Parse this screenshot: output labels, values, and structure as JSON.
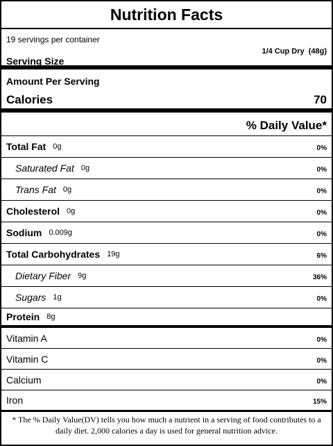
{
  "title": "Nutrition Facts",
  "servings_per_container": "19 servings per container",
  "serving_size": {
    "label": "Serving Size",
    "value": "1/4 Cup Dry  (48g)"
  },
  "amount_per_serving": "Amount Per Serving",
  "calories": {
    "label": "Calories",
    "value": "70"
  },
  "daily_value_header": "% Daily Value*",
  "nutrients": [
    {
      "name": "Total Fat",
      "amount": "0g",
      "dv": "0%"
    },
    {
      "name": "Saturated Fat",
      "amount": "0g",
      "dv": "0%"
    },
    {
      "name": "Trans Fat",
      "amount": "0g",
      "dv": "0%"
    },
    {
      "name": "Cholesterol",
      "amount": "0g",
      "dv": "0%"
    },
    {
      "name": "Sodium",
      "amount": "0.009g",
      "dv": "0%"
    },
    {
      "name": "Total Carbohydrates",
      "amount": "19g",
      "dv": "6%"
    },
    {
      "name": "Dietary Fiber",
      "amount": "9g",
      "dv": "36%"
    },
    {
      "name": "Sugars",
      "amount": "1g",
      "dv": "0%"
    },
    {
      "name": "Protein",
      "amount": "8g"
    }
  ],
  "vitamins": [
    {
      "name": "Vitamin A",
      "dv": "0%"
    },
    {
      "name": "Vitamin C",
      "dv": "0%"
    },
    {
      "name": "Calcium",
      "dv": "0%"
    },
    {
      "name": "Iron",
      "dv": "15%"
    }
  ],
  "footnote": "* The % Daily Value(DV) tells you how much a nutrient in a serving of food contributes to a daily diet. 2,000 calories a day is used for general nutrition advice."
}
